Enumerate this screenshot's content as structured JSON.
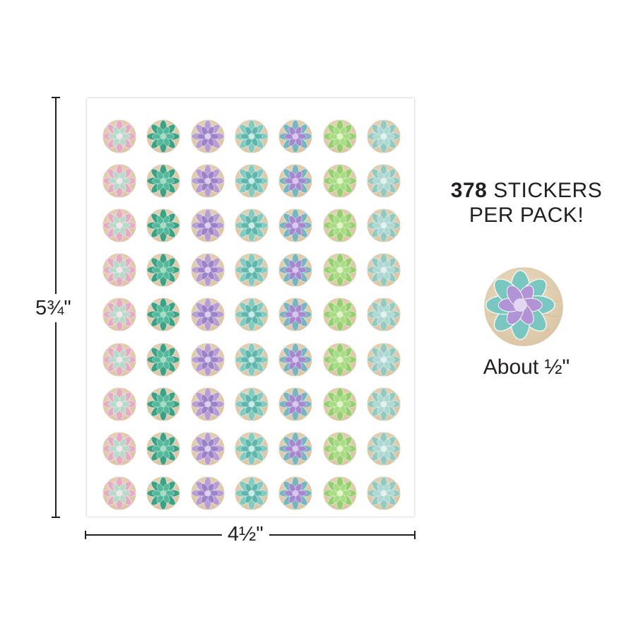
{
  "product": {
    "sheet": {
      "columns": 7,
      "rows": 9,
      "sticker_types": [
        {
          "icon": "pink-echeveria-icon",
          "petal": "#e8a8c8",
          "inner": "#b6dcc8",
          "center": "#f4e6ee"
        },
        {
          "icon": "green-agave-icon",
          "petal": "#2f9e82",
          "inner": "#54b89a",
          "center": "#a9dcc6"
        },
        {
          "icon": "purple-echeveria-icon",
          "petal": "#b49ad6",
          "inner": "#9c82c8",
          "center": "#dcd0ee"
        },
        {
          "icon": "teal-rosette-icon",
          "petal": "#7ccbc2",
          "inner": "#5fb6ad",
          "center": "#c9ece6"
        },
        {
          "icon": "blue-violet-succulent-icon",
          "petal": "#6fb4c2",
          "inner": "#a886d0",
          "center": "#d8c8ee"
        },
        {
          "icon": "lime-succulent-icon",
          "petal": "#8fd06a",
          "inner": "#a9dc84",
          "center": "#e2f4c8"
        },
        {
          "icon": "pale-teal-star-icon",
          "petal": "#8ccac4",
          "inner": "#b0d8d2",
          "center": "#e4f2ee"
        }
      ],
      "background_color": "#d9c4a3"
    },
    "height_label": "5¾\"",
    "width_label": "4½\"",
    "sticker_count": "378",
    "stickers_word": "STICKERS",
    "per_pack": "PER PACK!",
    "size_label": "About ½\"",
    "sample_icon": "purple-teal-echeveria-icon"
  }
}
